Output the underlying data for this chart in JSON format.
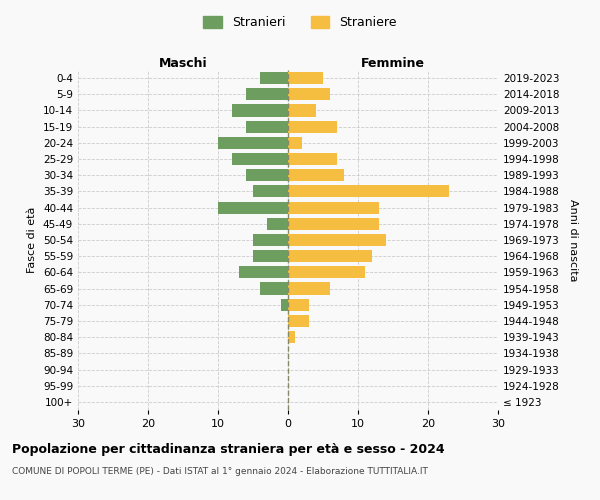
{
  "age_groups": [
    "100+",
    "95-99",
    "90-94",
    "85-89",
    "80-84",
    "75-79",
    "70-74",
    "65-69",
    "60-64",
    "55-59",
    "50-54",
    "45-49",
    "40-44",
    "35-39",
    "30-34",
    "25-29",
    "20-24",
    "15-19",
    "10-14",
    "5-9",
    "0-4"
  ],
  "birth_years": [
    "≤ 1923",
    "1924-1928",
    "1929-1933",
    "1934-1938",
    "1939-1943",
    "1944-1948",
    "1949-1953",
    "1954-1958",
    "1959-1963",
    "1964-1968",
    "1969-1973",
    "1974-1978",
    "1979-1983",
    "1984-1988",
    "1989-1993",
    "1994-1998",
    "1999-2003",
    "2004-2008",
    "2009-2013",
    "2014-2018",
    "2019-2023"
  ],
  "males": [
    0,
    0,
    0,
    0,
    0,
    0,
    1,
    4,
    7,
    5,
    5,
    3,
    10,
    5,
    6,
    8,
    10,
    6,
    8,
    6,
    4
  ],
  "females": [
    0,
    0,
    0,
    0,
    1,
    3,
    3,
    6,
    11,
    12,
    14,
    13,
    13,
    23,
    8,
    7,
    2,
    7,
    4,
    6,
    5
  ],
  "male_color": "#6e9e5f",
  "female_color": "#f5be41",
  "background_color": "#f9f9f9",
  "grid_color": "#cccccc",
  "center_line_color": "#888866",
  "xlim": 30,
  "title": "Popolazione per cittadinanza straniera per età e sesso - 2024",
  "subtitle": "COMUNE DI POPOLI TERME (PE) - Dati ISTAT al 1° gennaio 2024 - Elaborazione TUTTITALIA.IT",
  "legend_stranieri": "Stranieri",
  "legend_straniere": "Straniere",
  "xlabel_left": "Maschi",
  "xlabel_right": "Femmine",
  "ylabel_left": "Fasce di età",
  "ylabel_right": "Anni di nascita"
}
